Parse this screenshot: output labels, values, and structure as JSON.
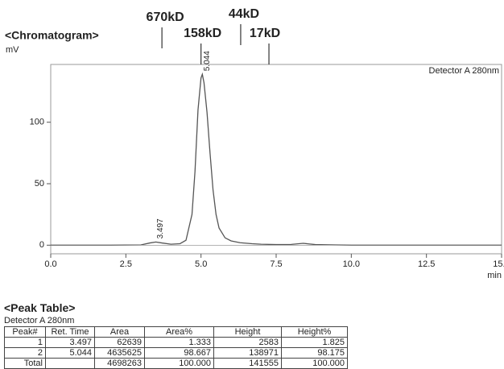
{
  "chart_data": {
    "type": "line",
    "title": "<Chromatogram>",
    "ylabel": "mV",
    "xlabel": "min",
    "detector": "Detector A 280nm",
    "x": [
      0,
      1,
      2,
      3,
      3.3,
      3.497,
      3.7,
      4.0,
      4.3,
      4.5,
      4.7,
      4.8,
      4.9,
      5.0,
      5.044,
      5.1,
      5.2,
      5.3,
      5.4,
      5.5,
      5.6,
      5.8,
      6.0,
      6.3,
      6.7,
      7.0,
      7.5,
      8.0,
      8.4,
      8.8,
      9.5,
      10,
      12,
      15
    ],
    "series": [
      {
        "name": "Detector A 280nm",
        "color": "#555555",
        "values": [
          0,
          0,
          0,
          0.2,
          1.8,
          2.6,
          1.8,
          0.8,
          1.2,
          4,
          25,
          60,
          110,
          136,
          139,
          132,
          108,
          75,
          45,
          25,
          14,
          6,
          3.5,
          2,
          1.2,
          0.8,
          0.5,
          0.6,
          1.5,
          0.5,
          0.2,
          0,
          0,
          0
        ]
      }
    ],
    "peak_labels": [
      {
        "x": 3.497,
        "y": 2.583
      },
      {
        "x": 5.044,
        "y": 138.971
      }
    ],
    "markers": [
      {
        "label": "670kD",
        "x": 3.7
      },
      {
        "label": "158kD",
        "x": 5.0
      },
      {
        "label": "44kD",
        "x": 6.32
      },
      {
        "label": "17kD",
        "x": 7.26
      }
    ],
    "xlim": [
      0,
      15
    ],
    "ylim": [
      -7,
      147
    ],
    "xticks": [
      {
        "value": 0,
        "label": "0.0"
      },
      {
        "value": 2.5,
        "label": "2.5"
      },
      {
        "value": 5,
        "label": "5.0"
      },
      {
        "value": 7.5,
        "label": "7.5"
      },
      {
        "value": 10,
        "label": "10.0"
      },
      {
        "value": 12.5,
        "label": "12.5"
      },
      {
        "value": 15,
        "label": "15.0"
      }
    ],
    "yticks": [
      0,
      50,
      100
    ]
  },
  "table": {
    "title": "<Peak Table>",
    "subtitle": "Detector A 280nm",
    "headers": [
      "Peak#",
      "Ret. Time",
      "Area",
      "Area%",
      "Height",
      "Height%"
    ],
    "rows": [
      [
        "1",
        "3.497",
        "62639",
        "1.333",
        "2583",
        "1.825"
      ],
      [
        "2",
        "5.044",
        "4635625",
        "98.667",
        "138971",
        "98.175"
      ],
      [
        "Total",
        null,
        "4698263",
        "100.000",
        "141555",
        "100.000"
      ]
    ]
  }
}
